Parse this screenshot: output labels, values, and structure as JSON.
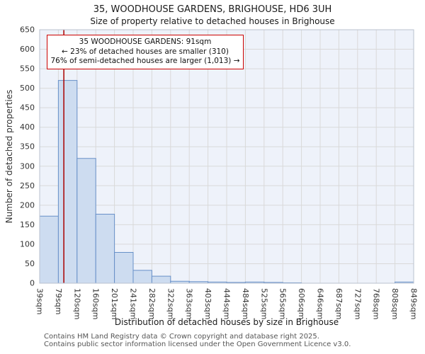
{
  "chart_data": {
    "type": "bar",
    "title": "35, WOODHOUSE GARDENS, BRIGHOUSE, HD6 3UH",
    "subtitle": "Size of property relative to detached houses in Brighouse",
    "xlabel": "Distribution of detached houses by size in Brighouse",
    "ylabel": "Number of detached properties",
    "categories": [
      "39sqm",
      "79sqm",
      "120sqm",
      "160sqm",
      "201sqm",
      "241sqm",
      "282sqm",
      "322sqm",
      "363sqm",
      "403sqm",
      "444sqm",
      "484sqm",
      "525sqm",
      "565sqm",
      "606sqm",
      "646sqm",
      "687sqm",
      "727sqm",
      "768sqm",
      "808sqm",
      "849sqm"
    ],
    "bin_edges_sqm": [
      39,
      79,
      120,
      160,
      201,
      241,
      282,
      322,
      363,
      403,
      444,
      484,
      525,
      565,
      606,
      646,
      687,
      727,
      768,
      808,
      849
    ],
    "values": [
      172,
      520,
      320,
      177,
      79,
      33,
      18,
      5,
      4,
      3,
      2,
      3,
      2,
      1,
      0,
      0,
      0,
      0,
      0,
      3
    ],
    "ylim": [
      0,
      650
    ],
    "ytick_step": 50,
    "yticks": [
      0,
      50,
      100,
      150,
      200,
      250,
      300,
      350,
      400,
      450,
      500,
      550,
      600,
      650
    ],
    "grid": true,
    "legend": false,
    "marker": {
      "value_sqm": 91
    },
    "annotation": {
      "line1": "35 WOODHOUSE GARDENS: 91sqm",
      "line2": "← 23% of detached houses are smaller (310)",
      "line3": "76% of semi-detached houses are larger (1,013) →"
    },
    "colors": {
      "bar_fill": "#cddcf0",
      "bar_border": "#6890c8",
      "marker_line": "#aa0000",
      "annotation_border": "#cc0000",
      "plot_bg": "#eef2fa",
      "grid": "#d9d9d9",
      "axis_border": "#b9c2cf",
      "tick_text": "#333333"
    }
  },
  "footer": {
    "line1": "Contains HM Land Registry data © Crown copyright and database right 2025.",
    "line2": "Contains public sector information licensed under the Open Government Licence v3.0."
  }
}
